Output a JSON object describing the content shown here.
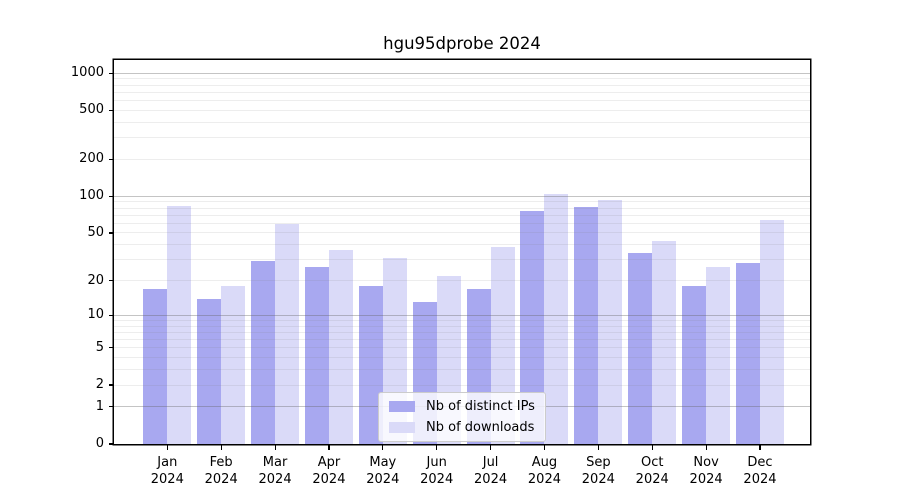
{
  "title": "hgu95dprobe 2024",
  "chart_data": {
    "type": "bar",
    "title": "hgu95dprobe 2024",
    "categories": [
      "Jan",
      "Feb",
      "Mar",
      "Apr",
      "May",
      "Jun",
      "Jul",
      "Aug",
      "Sep",
      "Oct",
      "Nov",
      "Dec"
    ],
    "year_label": "2024",
    "series": [
      {
        "name": "Nb of distinct IPs",
        "color": "#a8a8f0",
        "values": [
          17,
          14,
          29,
          26,
          18,
          13,
          17,
          76,
          82,
          34,
          18,
          28
        ]
      },
      {
        "name": "Nb of downloads",
        "color": "#dadaf8",
        "values": [
          84,
          18,
          59,
          36,
          31,
          22,
          38,
          105,
          94,
          43,
          26,
          64
        ]
      }
    ],
    "y_ticks": [
      0,
      1,
      2,
      5,
      10,
      20,
      50,
      100,
      200,
      500,
      1000
    ],
    "y_scale": "log1p",
    "ylim": [
      0,
      1276
    ],
    "xlabel": "",
    "ylabel": "",
    "grid": true,
    "gridlines_over_bars": true,
    "legend_position": "bottom-center",
    "colors": {
      "frame": "#000000",
      "major_grid": "#c4c4c4",
      "minor_grid": "#e9e9e9",
      "background": "#ffffff"
    }
  }
}
